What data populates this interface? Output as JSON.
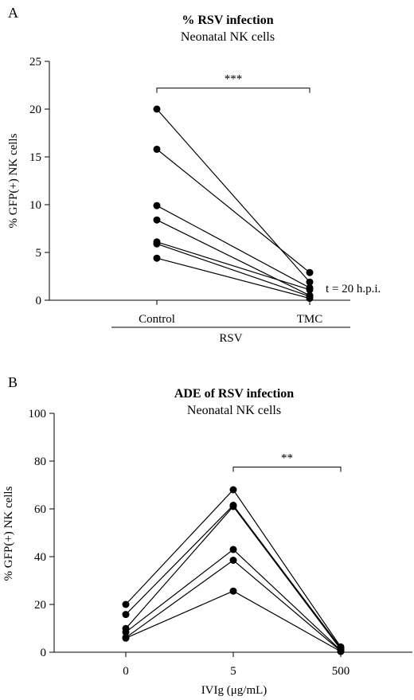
{
  "chart_data": [
    {
      "panel_label": "A",
      "type": "line",
      "title": "% RSV infection",
      "subtitle": "Neonatal NK cells",
      "ylabel": "% GFP(+) NK cells",
      "xlabel": "",
      "categories": [
        "Control",
        "TMC"
      ],
      "group_label": "RSV",
      "ylim": [
        0,
        25
      ],
      "yticks": [
        0,
        5,
        10,
        15,
        20,
        25
      ],
      "series": [
        {
          "values": [
            20.0,
            1.9
          ]
        },
        {
          "values": [
            15.8,
            2.9
          ]
        },
        {
          "values": [
            9.9,
            1.3
          ]
        },
        {
          "values": [
            8.4,
            0.5
          ]
        },
        {
          "values": [
            6.1,
            1.1
          ]
        },
        {
          "values": [
            5.9,
            0.4
          ]
        },
        {
          "values": [
            4.4,
            0.2
          ]
        }
      ],
      "significance": {
        "label": "***",
        "from": 0,
        "to": 1,
        "y": 22.2
      },
      "annotation": "t = 20 h.p.i.",
      "grid": false,
      "marker_color": "#000000"
    },
    {
      "panel_label": "B",
      "type": "line",
      "title": "ADE of RSV infection",
      "subtitle": "Neonatal NK cells",
      "ylabel": "% GFP(+) NK cells",
      "xlabel": "IVIg (μg/mL)",
      "categories": [
        "0",
        "5",
        "500"
      ],
      "ylim": [
        0,
        100
      ],
      "yticks": [
        0,
        20,
        40,
        60,
        80,
        100
      ],
      "series": [
        {
          "values": [
            20.0,
            68.0,
            2.2
          ]
        },
        {
          "values": [
            15.8,
            61.5,
            1.8
          ]
        },
        {
          "values": [
            9.9,
            61.0,
            1.2
          ]
        },
        {
          "values": [
            8.4,
            43.0,
            0.8
          ]
        },
        {
          "values": [
            6.1,
            38.5,
            0.5
          ]
        },
        {
          "values": [
            5.9,
            25.6,
            0.3
          ]
        }
      ],
      "significance": {
        "label": "**",
        "from": 1,
        "to": 2,
        "y": 77.5
      },
      "grid": false,
      "marker_color": "#000000"
    }
  ]
}
